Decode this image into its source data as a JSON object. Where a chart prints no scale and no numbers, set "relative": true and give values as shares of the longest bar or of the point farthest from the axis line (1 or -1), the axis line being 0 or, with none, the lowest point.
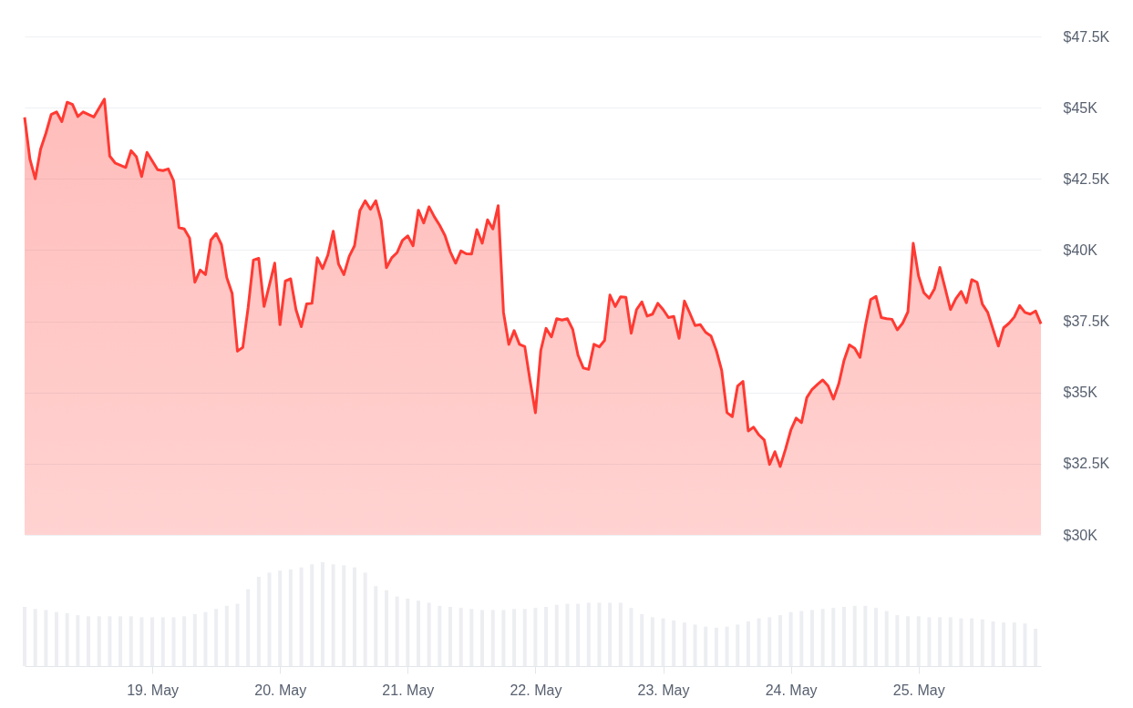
{
  "chart_data": [
    {
      "type": "area",
      "xlim": [
        "--05-18T00:00",
        "--05-25T23:00"
      ],
      "ylim": [
        30000,
        47500
      ],
      "yticks": [
        {
          "value": 30000,
          "label": "$30K"
        },
        {
          "value": 32500,
          "label": "$32.5K"
        },
        {
          "value": 35000,
          "label": "$35K"
        },
        {
          "value": 37500,
          "label": "$37.5K"
        },
        {
          "value": 40000,
          "label": "$40K"
        },
        {
          "value": 42500,
          "label": "$42.5K"
        },
        {
          "value": 45000,
          "label": "$45K"
        },
        {
          "value": 47500,
          "label": "$47.5K"
        }
      ],
      "grid": "y",
      "tick_labels": "y",
      "series": [
        {
          "color": "#ff3a33",
          "x": [
            "--05-18T00:00",
            "--05-18T01:00",
            "--05-18T02:00",
            "--05-18T03:00",
            "--05-18T04:00",
            "--05-18T05:00",
            "--05-18T06:00",
            "--05-18T07:00",
            "--05-18T08:00",
            "--05-18T09:00",
            "--05-18T10:00",
            "--05-18T11:00",
            "--05-18T13:00",
            "--05-18T15:00",
            "--05-18T16:00",
            "--05-18T17:00",
            "--05-18T19:00",
            "--05-18T20:00",
            "--05-18T21:00",
            "--05-18T22:00",
            "--05-18T23:00",
            "--05-19T01:00",
            "--05-19T02:00",
            "--05-19T03:00",
            "--05-19T04:00",
            "--05-19T05:00",
            "--05-19T06:00",
            "--05-19T07:00",
            "--05-19T08:00",
            "--05-19T09:00",
            "--05-19T10:00",
            "--05-19T11:00",
            "--05-19T12:00",
            "--05-19T13:00",
            "--05-19T14:00",
            "--05-19T15:00",
            "--05-19T16:00",
            "--05-19T17:00",
            "--05-19T18:00",
            "--05-19T19:00",
            "--05-19T20:00",
            "--05-19T21:00",
            "--05-19T22:00",
            "--05-19T23:00",
            "--05-20T00:00",
            "--05-20T01:00",
            "--05-20T02:00",
            "--05-20T03:00",
            "--05-20T04:00",
            "--05-20T05:00",
            "--05-20T06:00",
            "--05-20T07:00",
            "--05-20T08:00",
            "--05-20T09:00",
            "--05-20T10:00",
            "--05-20T11:00",
            "--05-20T12:00",
            "--05-20T13:00",
            "--05-20T14:00",
            "--05-20T15:00",
            "--05-20T16:00",
            "--05-20T17:00",
            "--05-20T18:00",
            "--05-20T19:00",
            "--05-20T20:00",
            "--05-20T21:00",
            "--05-20T22:00",
            "--05-20T23:00",
            "--05-21T00:00",
            "--05-21T01:00",
            "--05-21T02:00",
            "--05-21T03:00",
            "--05-21T04:00",
            "--05-21T05:00",
            "--05-21T06:00",
            "--05-21T07:00",
            "--05-21T08:00",
            "--05-21T09:00",
            "--05-21T10:00",
            "--05-21T11:00",
            "--05-21T12:00",
            "--05-21T13:00",
            "--05-21T14:00",
            "--05-21T15:00",
            "--05-21T16:00",
            "--05-21T17:00",
            "--05-21T18:00",
            "--05-21T19:00",
            "--05-21T20:00",
            "--05-21T21:00",
            "--05-21T22:00",
            "--05-21T23:00",
            "--05-22T00:00",
            "--05-22T01:00",
            "--05-22T02:00",
            "--05-22T03:00",
            "--05-22T04:00",
            "--05-22T05:00",
            "--05-22T06:00",
            "--05-22T07:00",
            "--05-22T08:00",
            "--05-22T09:00",
            "--05-22T10:00",
            "--05-22T11:00",
            "--05-22T12:00",
            "--05-22T13:00",
            "--05-22T14:00",
            "--05-22T15:00",
            "--05-22T16:00",
            "--05-22T17:00",
            "--05-22T18:00",
            "--05-22T19:00",
            "--05-22T20:00",
            "--05-22T21:00",
            "--05-22T22:00",
            "--05-22T23:00",
            "--05-23T00:00",
            "--05-23T01:00",
            "--05-23T02:00",
            "--05-23T03:00",
            "--05-23T04:00",
            "--05-23T05:00",
            "--05-23T06:00",
            "--05-23T07:00",
            "--05-23T08:00",
            "--05-23T09:00",
            "--05-23T10:00",
            "--05-23T11:00",
            "--05-23T12:00",
            "--05-23T13:00",
            "--05-23T14:00",
            "--05-23T15:00",
            "--05-23T16:00",
            "--05-23T17:00",
            "--05-23T18:00",
            "--05-23T19:00",
            "--05-23T20:00",
            "--05-23T21:00",
            "--05-23T22:00",
            "--05-23T23:00",
            "--05-24T00:00",
            "--05-24T01:00",
            "--05-24T02:00",
            "--05-24T03:00",
            "--05-24T04:00",
            "--05-24T05:00",
            "--05-24T06:00",
            "--05-24T07:00",
            "--05-24T08:00",
            "--05-24T09:00",
            "--05-24T10:00",
            "--05-24T11:00",
            "--05-24T12:00",
            "--05-24T13:00",
            "--05-24T14:00",
            "--05-24T15:00",
            "--05-24T16:00",
            "--05-24T17:00",
            "--05-24T18:00",
            "--05-24T19:00",
            "--05-24T20:00",
            "--05-24T21:00",
            "--05-24T22:00",
            "--05-24T23:00",
            "--05-25T00:00",
            "--05-25T01:00",
            "--05-25T02:00",
            "--05-25T03:00",
            "--05-25T04:00",
            "--05-25T05:00",
            "--05-25T06:00",
            "--05-25T07:00",
            "--05-25T08:00",
            "--05-25T09:00",
            "--05-25T10:00",
            "--05-25T11:00",
            "--05-25T12:00",
            "--05-25T13:00",
            "--05-25T15:00",
            "--05-25T16:00",
            "--05-25T17:00",
            "--05-25T18:00",
            "--05-25T19:00",
            "--05-25T20:00",
            "--05-25T21:00",
            "--05-25T22:00",
            "--05-25T23:00"
          ],
          "values": [
            44660,
            43190,
            42500,
            43540,
            44100,
            44760,
            44850,
            44510,
            45190,
            45110,
            44690,
            44850,
            44670,
            45300,
            43300,
            43060,
            42900,
            43490,
            43280,
            42580,
            43430,
            42820,
            42790,
            42850,
            42430,
            40790,
            40740,
            40420,
            38870,
            39300,
            39140,
            40350,
            40580,
            40190,
            39030,
            38480,
            36450,
            36580,
            37970,
            39650,
            39710,
            38020,
            38770,
            39540,
            37380,
            38910,
            38990,
            37910,
            37310,
            38110,
            38130,
            39730,
            39350,
            39830,
            40660,
            39510,
            39140,
            39780,
            40150,
            41380,
            41730,
            41430,
            41730,
            41040,
            39380,
            39730,
            39910,
            40340,
            40500,
            40150,
            41400,
            40950,
            41520,
            41170,
            40870,
            40510,
            39940,
            39540,
            39970,
            39870,
            39860,
            40720,
            40240,
            41060,
            40740,
            41560,
            37810,
            36690,
            37170,
            36690,
            36610,
            35410,
            34290,
            36470,
            37250,
            36950,
            37590,
            37540,
            37590,
            37220,
            36310,
            35860,
            35810,
            36690,
            36600,
            36830,
            38420,
            38020,
            38360,
            38340,
            37080,
            37910,
            38180,
            37680,
            37750,
            38130,
            37910,
            37630,
            37670,
            36900,
            38210,
            37790,
            37350,
            37380,
            37110,
            36980,
            36470,
            35780,
            34290,
            34150,
            35230,
            35390,
            33650,
            33780,
            33510,
            33330,
            32470,
            32920,
            32400,
            33010,
            33680,
            34100,
            33940,
            34820,
            35110,
            35280,
            35440,
            35230,
            34770,
            35300,
            36130,
            36670,
            36550,
            36230,
            37330,
            38260,
            38370,
            37630,
            37590,
            37570,
            37200,
            37430,
            37830,
            40240,
            39090,
            38500,
            38310,
            38640,
            39390,
            38660,
            37910,
            38290,
            38550,
            38150,
            38960,
            38870,
            38100,
            37810,
            36630,
            37270,
            37430,
            37650,
            38050,
            37810,
            37750,
            37860,
            37410
          ]
        }
      ]
    },
    {
      "type": "bar",
      "relative": true,
      "xlim": [
        "--05-18T00:00",
        "--05-25T23:00"
      ],
      "xticks": [
        {
          "value": "--05-19T00:00",
          "label": "19. May"
        },
        {
          "value": "--05-20T00:00",
          "label": "20. May"
        },
        {
          "value": "--05-21T00:00",
          "label": "21. May"
        },
        {
          "value": "--05-22T00:00",
          "label": "22. May"
        },
        {
          "value": "--05-23T00:00",
          "label": "23. May"
        },
        {
          "value": "--05-24T00:00",
          "label": "24. May"
        },
        {
          "value": "--05-25T00:00",
          "label": "25. May"
        }
      ],
      "tick_labels": "x",
      "series": [
        {
          "color": "#eceef2",
          "x": [
            "--05-18T00:00",
            "--05-18T02:00",
            "--05-18T04:00",
            "--05-18T06:00",
            "--05-18T08:00",
            "--05-18T10:00",
            "--05-18T12:00",
            "--05-18T14:00",
            "--05-18T16:00",
            "--05-18T18:00",
            "--05-18T20:00",
            "--05-18T22:00",
            "--05-19T00:00",
            "--05-19T02:00",
            "--05-19T04:00",
            "--05-19T06:00",
            "--05-19T08:00",
            "--05-19T10:00",
            "--05-19T12:00",
            "--05-19T14:00",
            "--05-19T16:00",
            "--05-19T18:00",
            "--05-19T20:00",
            "--05-19T22:00",
            "--05-20T00:00",
            "--05-20T02:00",
            "--05-20T04:00",
            "--05-20T06:00",
            "--05-20T08:00",
            "--05-20T10:00",
            "--05-20T12:00",
            "--05-20T14:00",
            "--05-20T16:00",
            "--05-20T18:00",
            "--05-20T20:00",
            "--05-20T22:00",
            "--05-21T00:00",
            "--05-21T02:00",
            "--05-21T04:00",
            "--05-21T06:00",
            "--05-21T08:00",
            "--05-21T10:00",
            "--05-21T12:00",
            "--05-21T14:00",
            "--05-21T16:00",
            "--05-21T18:00",
            "--05-21T20:00",
            "--05-21T22:00",
            "--05-22T00:00",
            "--05-22T02:00",
            "--05-22T04:00",
            "--05-22T06:00",
            "--05-22T08:00",
            "--05-22T10:00",
            "--05-22T12:00",
            "--05-22T14:00",
            "--05-22T16:00",
            "--05-22T18:00",
            "--05-22T20:00",
            "--05-22T22:00",
            "--05-23T00:00",
            "--05-23T02:00",
            "--05-23T04:00",
            "--05-23T06:00",
            "--05-23T08:00",
            "--05-23T10:00",
            "--05-23T12:00",
            "--05-23T14:00",
            "--05-23T16:00",
            "--05-23T18:00",
            "--05-23T20:00",
            "--05-23T22:00",
            "--05-24T00:00",
            "--05-24T02:00",
            "--05-24T04:00",
            "--05-24T06:00",
            "--05-24T08:00",
            "--05-24T10:00",
            "--05-24T12:00",
            "--05-24T14:00",
            "--05-24T16:00",
            "--05-24T18:00",
            "--05-24T20:00",
            "--05-24T22:00",
            "--05-25T00:00",
            "--05-25T02:00",
            "--05-25T04:00",
            "--05-25T06:00",
            "--05-25T08:00",
            "--05-25T10:00",
            "--05-25T12:00",
            "--05-25T14:00",
            "--05-25T16:00",
            "--05-25T18:00",
            "--05-25T20:00",
            "--05-25T22:00"
          ],
          "values": [
            0.57,
            0.55,
            0.54,
            0.52,
            0.51,
            0.49,
            0.48,
            0.48,
            0.48,
            0.48,
            0.48,
            0.47,
            0.47,
            0.47,
            0.47,
            0.48,
            0.5,
            0.52,
            0.55,
            0.58,
            0.6,
            0.74,
            0.86,
            0.9,
            0.92,
            0.93,
            0.95,
            0.98,
            1,
            0.98,
            0.97,
            0.95,
            0.9,
            0.77,
            0.73,
            0.67,
            0.65,
            0.63,
            0.61,
            0.58,
            0.57,
            0.56,
            0.55,
            0.54,
            0.54,
            0.54,
            0.55,
            0.55,
            0.56,
            0.57,
            0.59,
            0.6,
            0.6,
            0.61,
            0.61,
            0.61,
            0.61,
            0.56,
            0.5,
            0.47,
            0.46,
            0.44,
            0.42,
            0.4,
            0.38,
            0.37,
            0.38,
            0.4,
            0.43,
            0.46,
            0.47,
            0.49,
            0.52,
            0.53,
            0.54,
            0.55,
            0.56,
            0.57,
            0.58,
            0.58,
            0.56,
            0.53,
            0.49,
            0.48,
            0.48,
            0.47,
            0.47,
            0.47,
            0.46,
            0.46,
            0.45,
            0.43,
            0.42,
            0.42,
            0.41,
            0.36
          ]
        }
      ]
    }
  ]
}
